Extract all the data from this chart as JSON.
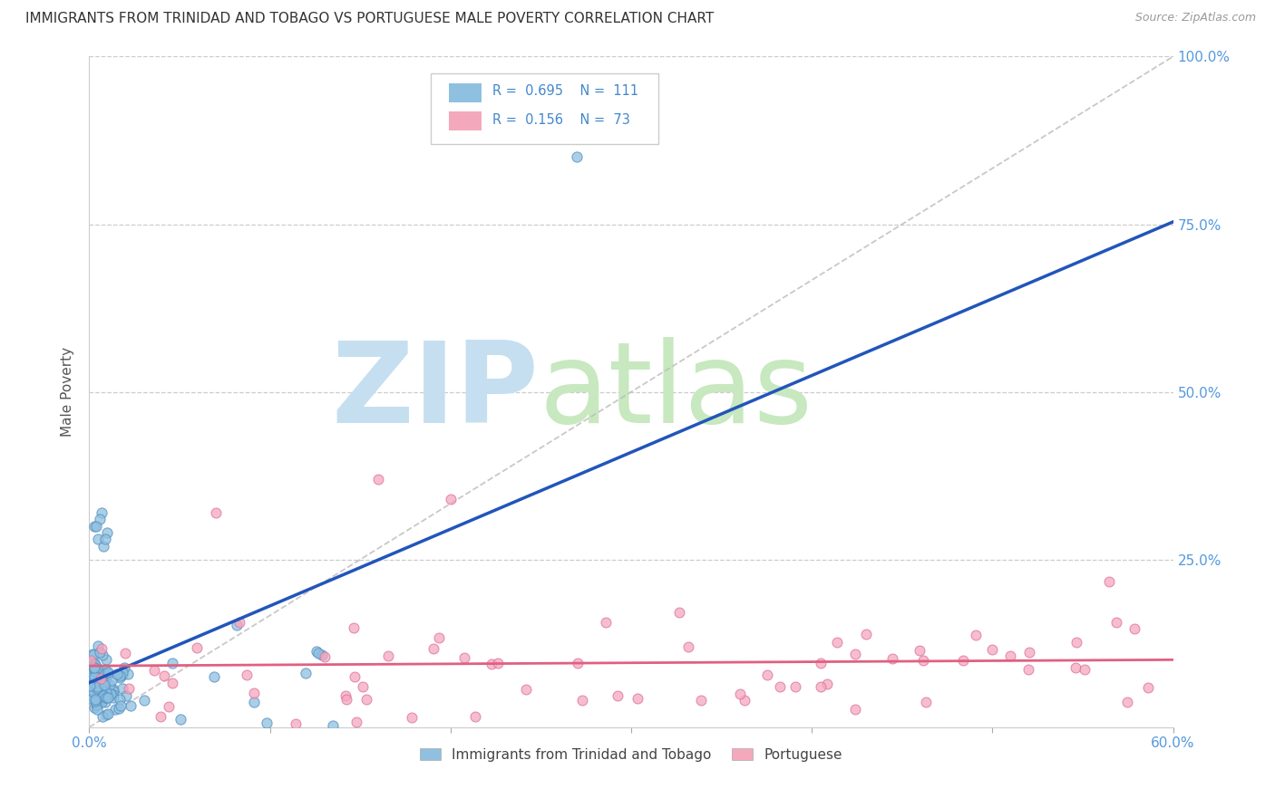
{
  "title": "IMMIGRANTS FROM TRINIDAD AND TOBAGO VS PORTUGUESE MALE POVERTY CORRELATION CHART",
  "source": "Source: ZipAtlas.com",
  "ylabel": "Male Poverty",
  "xlim": [
    0.0,
    0.6
  ],
  "ylim": [
    0.0,
    1.0
  ],
  "xtick_vals": [
    0.0,
    0.1,
    0.2,
    0.3,
    0.4,
    0.5,
    0.6
  ],
  "xtick_labels": [
    "0.0%",
    "",
    "",
    "",
    "",
    "",
    "60.0%"
  ],
  "ytick_vals": [
    0.25,
    0.5,
    0.75,
    1.0
  ],
  "ytick_labels": [
    "25.0%",
    "50.0%",
    "75.0%",
    "100.0%"
  ],
  "blue_R": 0.695,
  "blue_N": 111,
  "pink_R": 0.156,
  "pink_N": 73,
  "blue_label": "Immigrants from Trinidad and Tobago",
  "pink_label": "Portuguese",
  "blue_color": "#8fc0e0",
  "pink_color": "#f4a8bb",
  "blue_edge_color": "#5590c0",
  "pink_edge_color": "#e070a0",
  "blue_line_color": "#2255bb",
  "pink_line_color": "#e06080",
  "title_fontsize": 11,
  "background_color": "#ffffff",
  "grid_color": "#cccccc",
  "tick_color": "#5599dd",
  "legend_text_color": "#000000",
  "legend_RN_color": "#4488cc",
  "source_color": "#999999"
}
